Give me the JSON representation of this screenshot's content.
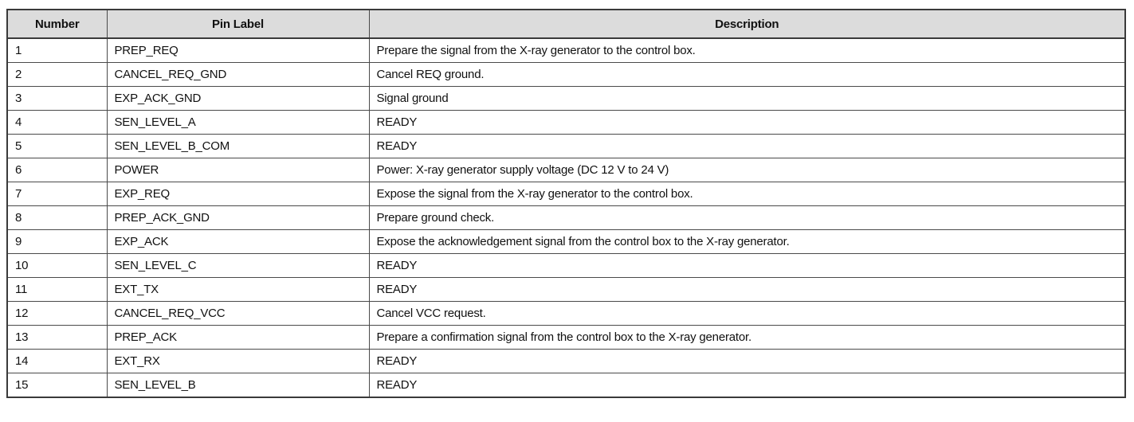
{
  "table": {
    "headers": [
      "Number",
      "Pin Label",
      "Description"
    ],
    "rows": [
      {
        "number": "1",
        "pin_label": "PREP_REQ",
        "description": "Prepare the signal from the X-ray generator to the control box."
      },
      {
        "number": "2",
        "pin_label": "CANCEL_REQ_GND",
        "description": "Cancel REQ ground."
      },
      {
        "number": "3",
        "pin_label": "EXP_ACK_GND",
        "description": "Signal ground"
      },
      {
        "number": "4",
        "pin_label": "SEN_LEVEL_A",
        "description": "READY"
      },
      {
        "number": "5",
        "pin_label": "SEN_LEVEL_B_COM",
        "description": "READY"
      },
      {
        "number": "6",
        "pin_label": "POWER",
        "description": "Power: X-ray generator supply voltage (DC 12 V to 24 V)"
      },
      {
        "number": "7",
        "pin_label": "EXP_REQ",
        "description": "Expose the signal from the X-ray generator to the control box."
      },
      {
        "number": "8",
        "pin_label": "PREP_ACK_GND",
        "description": "Prepare ground check."
      },
      {
        "number": "9",
        "pin_label": "EXP_ACK",
        "description": "Expose the acknowledgement signal from the control box to the X-ray generator."
      },
      {
        "number": "10",
        "pin_label": "SEN_LEVEL_C",
        "description": "READY"
      },
      {
        "number": "11",
        "pin_label": "EXT_TX",
        "description": "READY"
      },
      {
        "number": "12",
        "pin_label": "CANCEL_REQ_VCC",
        "description": "Cancel VCC request."
      },
      {
        "number": "13",
        "pin_label": "PREP_ACK",
        "description": "Prepare a confirmation signal from the control box to the X-ray generator."
      },
      {
        "number": "14",
        "pin_label": "EXT_RX",
        "description": "READY"
      },
      {
        "number": "15",
        "pin_label": "SEN_LEVEL_B",
        "description": "READY"
      }
    ],
    "style": {
      "header_background": "#dcdcdc",
      "border_color": "#4a4a4a",
      "text_color": "#111111"
    }
  }
}
